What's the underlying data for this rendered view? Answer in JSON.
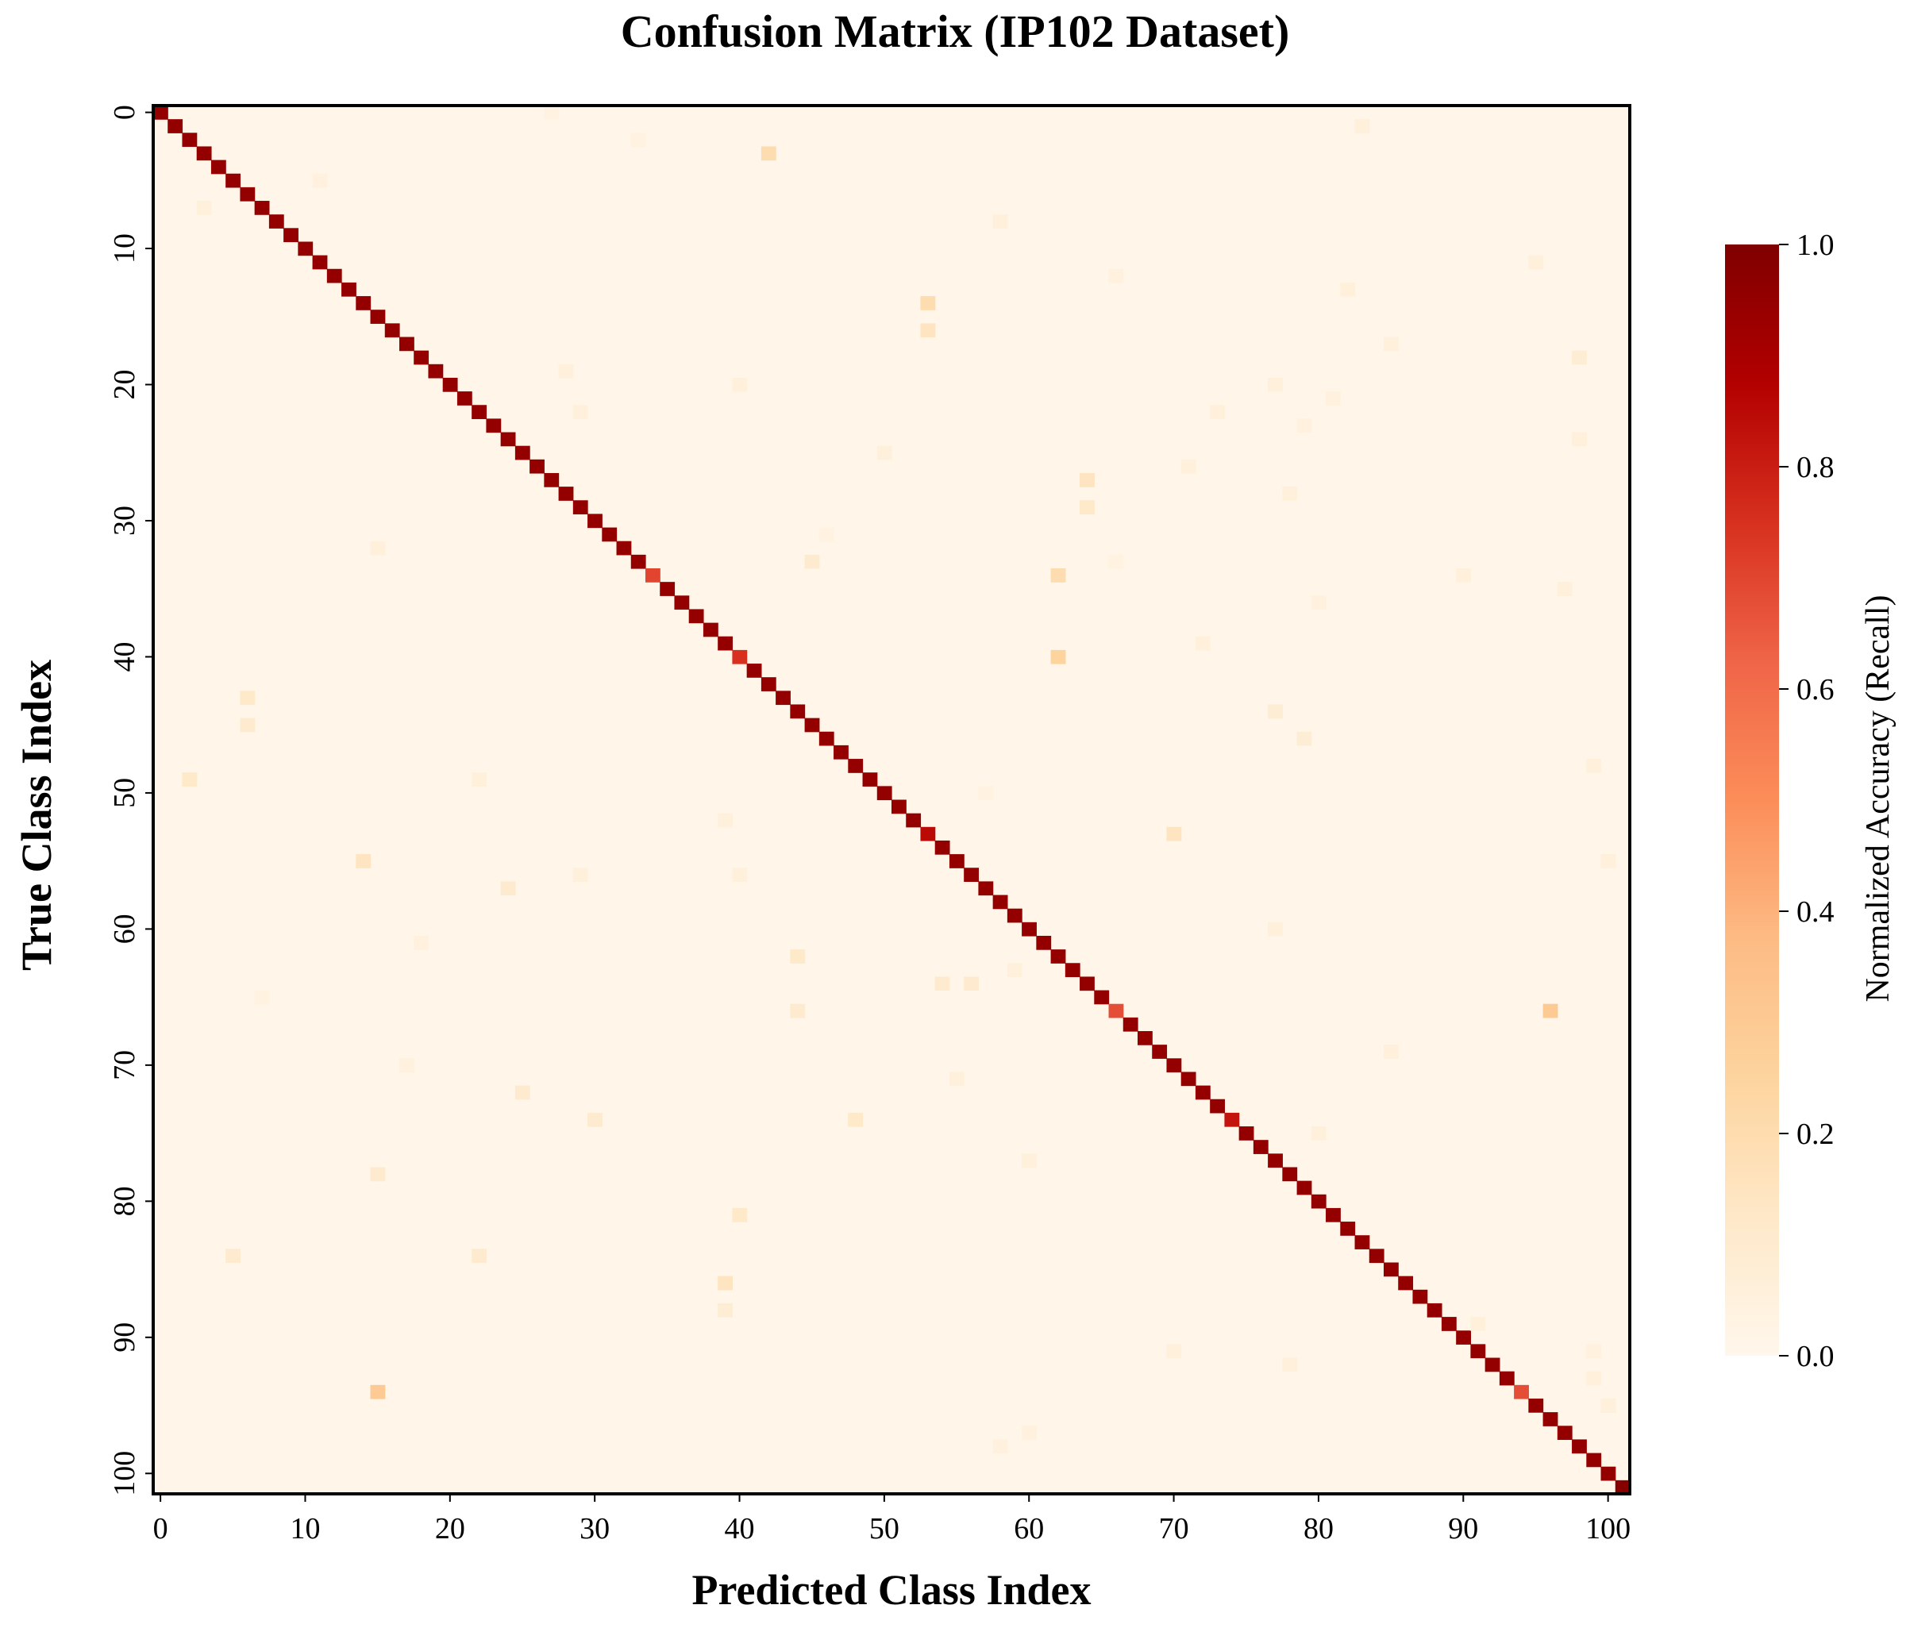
{
  "chart_data": {
    "type": "heatmap",
    "title": "Confusion Matrix (IP102 Dataset)",
    "xlabel": "Predicted Class Index",
    "ylabel": "True Class Index",
    "n_classes": 102,
    "x_ticks": [
      0,
      10,
      20,
      30,
      40,
      50,
      60,
      70,
      80,
      90,
      100
    ],
    "y_ticks": [
      0,
      10,
      20,
      30,
      40,
      50,
      60,
      70,
      80,
      90,
      100
    ],
    "colormap": "OrRd",
    "colormap_stops": [
      "#fff7ec",
      "#fee8c8",
      "#fdd49e",
      "#fdbb84",
      "#fc8d59",
      "#ef6548",
      "#d7301f",
      "#b30000",
      "#7f0000"
    ],
    "colorbar": {
      "label": "Normalized Accuracy (Recall)",
      "range": [
        0.0,
        1.0
      ],
      "ticks": [
        "0.0",
        "0.2",
        "0.4",
        "0.6",
        "0.8",
        "1.0"
      ]
    },
    "diagonal_default": 0.95,
    "diagonal_overrides": [
      [
        34,
        0.7
      ],
      [
        40,
        0.75
      ],
      [
        53,
        0.85
      ],
      [
        66,
        0.68
      ],
      [
        74,
        0.82
      ],
      [
        94,
        0.68
      ],
      [
        101,
        0.98
      ]
    ],
    "off_diagonal": [
      [
        3,
        42,
        0.2
      ],
      [
        14,
        53,
        0.2
      ],
      [
        16,
        53,
        0.15
      ],
      [
        27,
        64,
        0.15
      ],
      [
        29,
        64,
        0.12
      ],
      [
        33,
        45,
        0.1
      ],
      [
        34,
        62,
        0.2
      ],
      [
        40,
        62,
        0.25
      ],
      [
        43,
        6,
        0.12
      ],
      [
        45,
        6,
        0.1
      ],
      [
        49,
        2,
        0.12
      ],
      [
        53,
        70,
        0.15
      ],
      [
        55,
        14,
        0.15
      ],
      [
        57,
        24,
        0.1
      ],
      [
        62,
        44,
        0.12
      ],
      [
        64,
        54,
        0.1
      ],
      [
        64,
        56,
        0.1
      ],
      [
        66,
        44,
        0.1
      ],
      [
        66,
        96,
        0.3
      ],
      [
        72,
        25,
        0.1
      ],
      [
        74,
        30,
        0.1
      ],
      [
        74,
        48,
        0.12
      ],
      [
        78,
        15,
        0.1
      ],
      [
        81,
        40,
        0.12
      ],
      [
        84,
        5,
        0.1
      ],
      [
        84,
        22,
        0.1
      ],
      [
        86,
        39,
        0.15
      ],
      [
        88,
        39,
        0.08
      ],
      [
        94,
        15,
        0.3
      ],
      [
        95,
        100,
        0.1
      ],
      [
        7,
        3,
        0.06
      ],
      [
        5,
        11,
        0.05
      ],
      [
        8,
        58,
        0.06
      ],
      [
        1,
        83,
        0.06
      ],
      [
        11,
        95,
        0.06
      ],
      [
        12,
        66,
        0.05
      ],
      [
        13,
        82,
        0.06
      ],
      [
        17,
        85,
        0.06
      ],
      [
        18,
        98,
        0.08
      ],
      [
        19,
        28,
        0.06
      ],
      [
        20,
        40,
        0.06
      ],
      [
        20,
        77,
        0.06
      ],
      [
        22,
        29,
        0.06
      ],
      [
        22,
        73,
        0.06
      ],
      [
        24,
        98,
        0.06
      ],
      [
        25,
        50,
        0.06
      ],
      [
        26,
        71,
        0.06
      ],
      [
        28,
        78,
        0.06
      ],
      [
        32,
        15,
        0.06
      ],
      [
        34,
        90,
        0.06
      ],
      [
        35,
        97,
        0.06
      ],
      [
        36,
        80,
        0.05
      ],
      [
        39,
        72,
        0.06
      ],
      [
        44,
        77,
        0.08
      ],
      [
        46,
        79,
        0.08
      ],
      [
        48,
        99,
        0.06
      ],
      [
        49,
        22,
        0.06
      ],
      [
        52,
        39,
        0.06
      ],
      [
        55,
        100,
        0.06
      ],
      [
        56,
        29,
        0.06
      ],
      [
        56,
        40,
        0.06
      ],
      [
        60,
        77,
        0.06
      ],
      [
        63,
        59,
        0.06
      ],
      [
        69,
        85,
        0.06
      ],
      [
        71,
        55,
        0.06
      ],
      [
        75,
        80,
        0.06
      ],
      [
        77,
        60,
        0.06
      ],
      [
        89,
        91,
        0.06
      ],
      [
        91,
        70,
        0.06
      ],
      [
        92,
        78,
        0.06
      ],
      [
        93,
        99,
        0.06
      ],
      [
        95,
        100,
        0.06
      ],
      [
        97,
        60,
        0.05
      ],
      [
        98,
        58,
        0.05
      ],
      [
        61,
        18,
        0.05
      ],
      [
        70,
        17,
        0.05
      ],
      [
        0,
        27,
        0.04
      ],
      [
        2,
        33,
        0.04
      ],
      [
        31,
        46,
        0.04
      ],
      [
        50,
        57,
        0.04
      ],
      [
        65,
        7,
        0.04
      ],
      [
        91,
        99,
        0.05
      ],
      [
        33,
        66,
        0.04
      ],
      [
        21,
        81,
        0.05
      ],
      [
        23,
        79,
        0.05
      ]
    ]
  }
}
